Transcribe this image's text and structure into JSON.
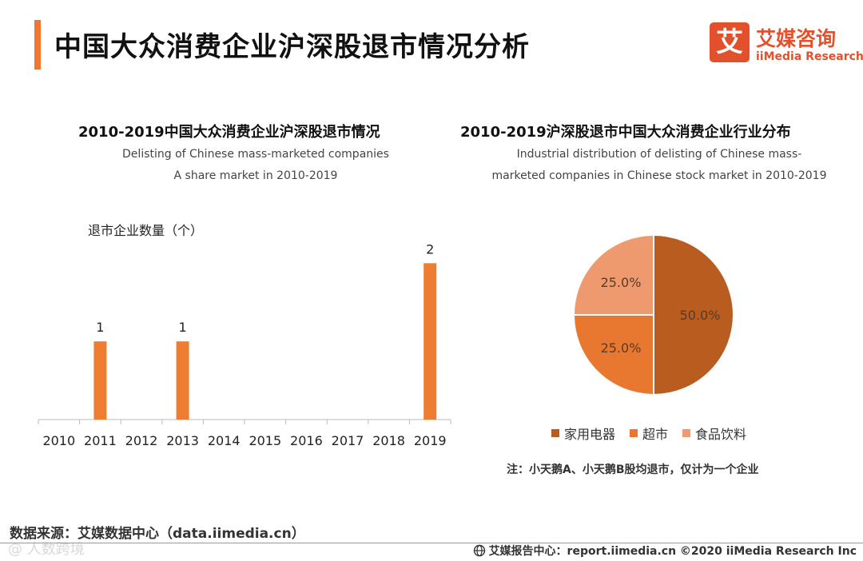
{
  "page": {
    "title": "中国大众消费企业沪深股退市情况分析"
  },
  "logo": {
    "mark": "艾",
    "name_cn": "艾媒咨询",
    "name_en": "iiMedia Research"
  },
  "left_chart": {
    "title": "2010-2019中国大众消费企业沪深股退市情况",
    "subtitle_1": "Delisting of Chinese mass-marketed companies",
    "subtitle_2": "A share market in 2010-2019",
    "ylabel": "退市企业数量（个）"
  },
  "right_chart": {
    "title": "2010-2019沪深股退市中国大众消费企业行业分布",
    "subtitle_1": "Industrial distribution of delisting of Chinese mass-",
    "subtitle_2": "marketed companies in Chinese stock market in 2010-2019",
    "note": "注：小天鹅A、小天鹅B股均退市，仅计为一个企业"
  },
  "chart_data": [
    {
      "type": "bar",
      "title": "2010-2019中国大众消费企业沪深股退市情况",
      "ylabel": "退市企业数量（个）",
      "categories": [
        "2010",
        "2011",
        "2012",
        "2013",
        "2014",
        "2015",
        "2016",
        "2017",
        "2018",
        "2019"
      ],
      "values": [
        0,
        1,
        0,
        1,
        0,
        0,
        0,
        0,
        0,
        2
      ],
      "labels": [
        "",
        "1",
        "",
        "1",
        "",
        "",
        "",
        "",
        "",
        "2"
      ],
      "ylim": [
        0,
        2.3
      ],
      "color": "#ed7d31"
    },
    {
      "type": "pie",
      "title": "2010-2019沪深股退市中国大众消费企业行业分布",
      "slices": [
        {
          "name": "家用电器",
          "value": 50.0,
          "label": "50.0%",
          "color": "#b85c1f"
        },
        {
          "name": "超市",
          "value": 25.0,
          "label": "25.0%",
          "color": "#e8782f"
        },
        {
          "name": "食品饮料",
          "value": 25.0,
          "label": "25.0%",
          "color": "#ef9a6e"
        }
      ]
    }
  ],
  "footer": {
    "source": "数据来源：艾媒数据中心（data.iimedia.cn）",
    "watermark": "@ 人数跨境",
    "report": "艾媒报告中心：report.iimedia.cn  ©2020  iiMedia Research  Inc"
  }
}
